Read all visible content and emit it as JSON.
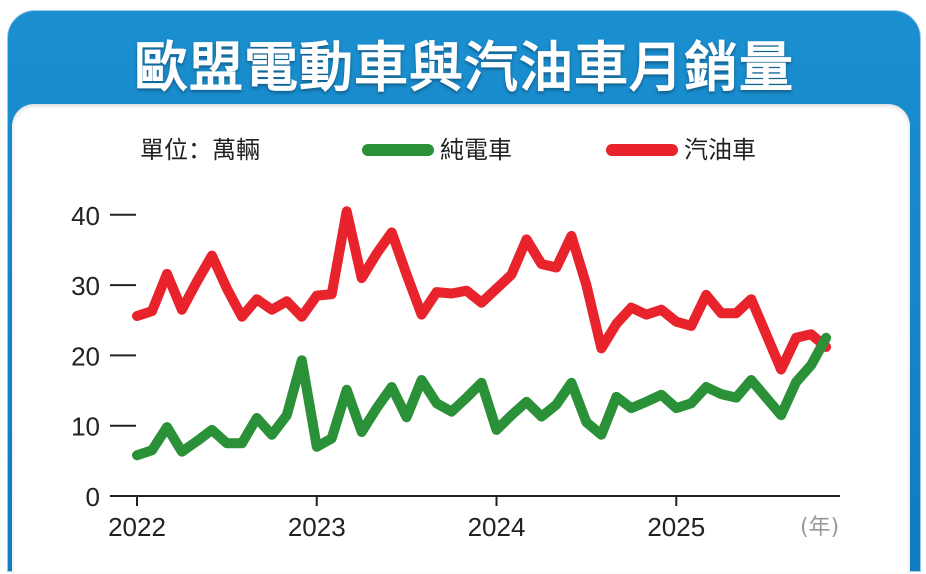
{
  "chart_data": {
    "type": "line",
    "title": "歐盟電動車與汽油車月銷量",
    "unit_label": "單位：萬輛",
    "x_unit": "(年)",
    "x_ticks": [
      "2022",
      "2023",
      "2024",
      "2025"
    ],
    "x_start": "2022-01",
    "x_end": "2025-11",
    "y_ticks": [
      0,
      10,
      20,
      30,
      40
    ],
    "ylim": [
      0,
      42
    ],
    "legend_position": "top",
    "grid": false,
    "series": [
      {
        "name": "純電車",
        "color": "#2a9138",
        "values": [
          5.8,
          6.5,
          9.8,
          6.3,
          7.8,
          9.4,
          7.5,
          7.5,
          11.1,
          8.7,
          11.5,
          19.3,
          7.0,
          8.2,
          15.1,
          9.1,
          12.5,
          15.5,
          11.2,
          16.5,
          13.2,
          12.0,
          14.0,
          16.1,
          9.4,
          11.5,
          13.4,
          11.3,
          13.0,
          16.1,
          10.5,
          8.7,
          14.1,
          12.5,
          13.4,
          14.4,
          12.5,
          13.2,
          15.5,
          14.5,
          14.0,
          16.5,
          14.0,
          11.5,
          16.2,
          18.6,
          22.5
        ]
      },
      {
        "name": "汽油車",
        "color": "#e8232b",
        "values": [
          25.6,
          26.3,
          31.6,
          26.5,
          30.5,
          34.2,
          29.5,
          25.5,
          28.0,
          26.5,
          27.7,
          25.5,
          28.5,
          28.7,
          40.5,
          31.0,
          34.5,
          37.5,
          31.5,
          25.8,
          29.0,
          28.8,
          29.2,
          27.5,
          29.5,
          31.5,
          36.5,
          33.0,
          32.5,
          37.0,
          30.0,
          21.0,
          24.5,
          26.8,
          25.8,
          26.5,
          24.8,
          24.2,
          28.6,
          26.0,
          26.0,
          28.0,
          23.0,
          18.0,
          22.5,
          23.0,
          21.2
        ]
      }
    ]
  }
}
